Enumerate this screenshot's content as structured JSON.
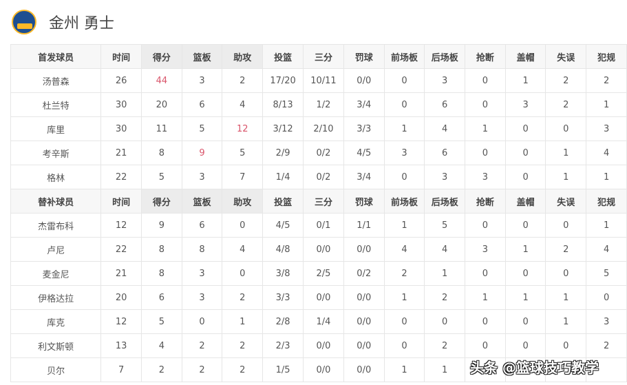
{
  "team": {
    "name": "金州 勇士",
    "logo_icon": "warriors-logo"
  },
  "accent": "#d9546a",
  "columns": [
    "时间",
    "得分",
    "篮板",
    "助攻",
    "投篮",
    "三分",
    "罚球",
    "前场板",
    "后场板",
    "抢断",
    "盖帽",
    "失误",
    "犯规"
  ],
  "starters_label": "首发球员",
  "bench_label": "替补球员",
  "starters": [
    {
      "name": "汤普森",
      "stats": [
        "26",
        "44",
        "3",
        "2",
        "17/20",
        "10/11",
        "0/0",
        "0",
        "3",
        "0",
        "1",
        "2",
        "2"
      ],
      "hi": [
        1
      ]
    },
    {
      "name": "杜兰特",
      "stats": [
        "30",
        "20",
        "6",
        "4",
        "8/13",
        "1/2",
        "3/4",
        "0",
        "6",
        "0",
        "3",
        "2",
        "1"
      ],
      "hi": []
    },
    {
      "name": "库里",
      "stats": [
        "30",
        "11",
        "5",
        "12",
        "3/12",
        "2/10",
        "3/3",
        "1",
        "4",
        "1",
        "0",
        "0",
        "3"
      ],
      "hi": [
        3
      ]
    },
    {
      "name": "考辛斯",
      "stats": [
        "21",
        "8",
        "9",
        "5",
        "2/9",
        "0/2",
        "4/5",
        "3",
        "6",
        "0",
        "0",
        "1",
        "4"
      ],
      "hi": [
        2
      ]
    },
    {
      "name": "格林",
      "stats": [
        "22",
        "5",
        "3",
        "7",
        "1/4",
        "0/2",
        "3/4",
        "0",
        "3",
        "3",
        "0",
        "1",
        "1"
      ],
      "hi": []
    }
  ],
  "bench": [
    {
      "name": "杰雷布科",
      "stats": [
        "12",
        "9",
        "6",
        "0",
        "4/5",
        "0/1",
        "1/1",
        "1",
        "5",
        "0",
        "0",
        "0",
        "1"
      ],
      "hi": []
    },
    {
      "name": "卢尼",
      "stats": [
        "22",
        "8",
        "8",
        "4",
        "4/8",
        "0/0",
        "0/0",
        "4",
        "4",
        "3",
        "1",
        "2",
        "4"
      ],
      "hi": []
    },
    {
      "name": "麦金尼",
      "stats": [
        "21",
        "8",
        "3",
        "0",
        "3/8",
        "2/5",
        "0/2",
        "2",
        "1",
        "0",
        "0",
        "0",
        "5"
      ],
      "hi": []
    },
    {
      "name": "伊格达拉",
      "stats": [
        "20",
        "6",
        "3",
        "2",
        "3/3",
        "0/0",
        "0/0",
        "1",
        "2",
        "1",
        "1",
        "1",
        "0"
      ],
      "hi": []
    },
    {
      "name": "库克",
      "stats": [
        "12",
        "5",
        "0",
        "1",
        "2/8",
        "1/4",
        "0/0",
        "0",
        "0",
        "0",
        "0",
        "1",
        "3"
      ],
      "hi": []
    },
    {
      "name": "利文斯顿",
      "stats": [
        "13",
        "4",
        "2",
        "2",
        "2/3",
        "0/0",
        "0/0",
        "0",
        "2",
        "0",
        "0",
        "0",
        "2"
      ],
      "hi": []
    },
    {
      "name": "贝尔",
      "stats": [
        "7",
        "2",
        "2",
        "2",
        "1/5",
        "0/0",
        "0/0",
        "1",
        "1",
        "",
        "",
        "",
        ""
      ],
      "hi": []
    }
  ],
  "watermark": "头条 @篮球技巧教学"
}
